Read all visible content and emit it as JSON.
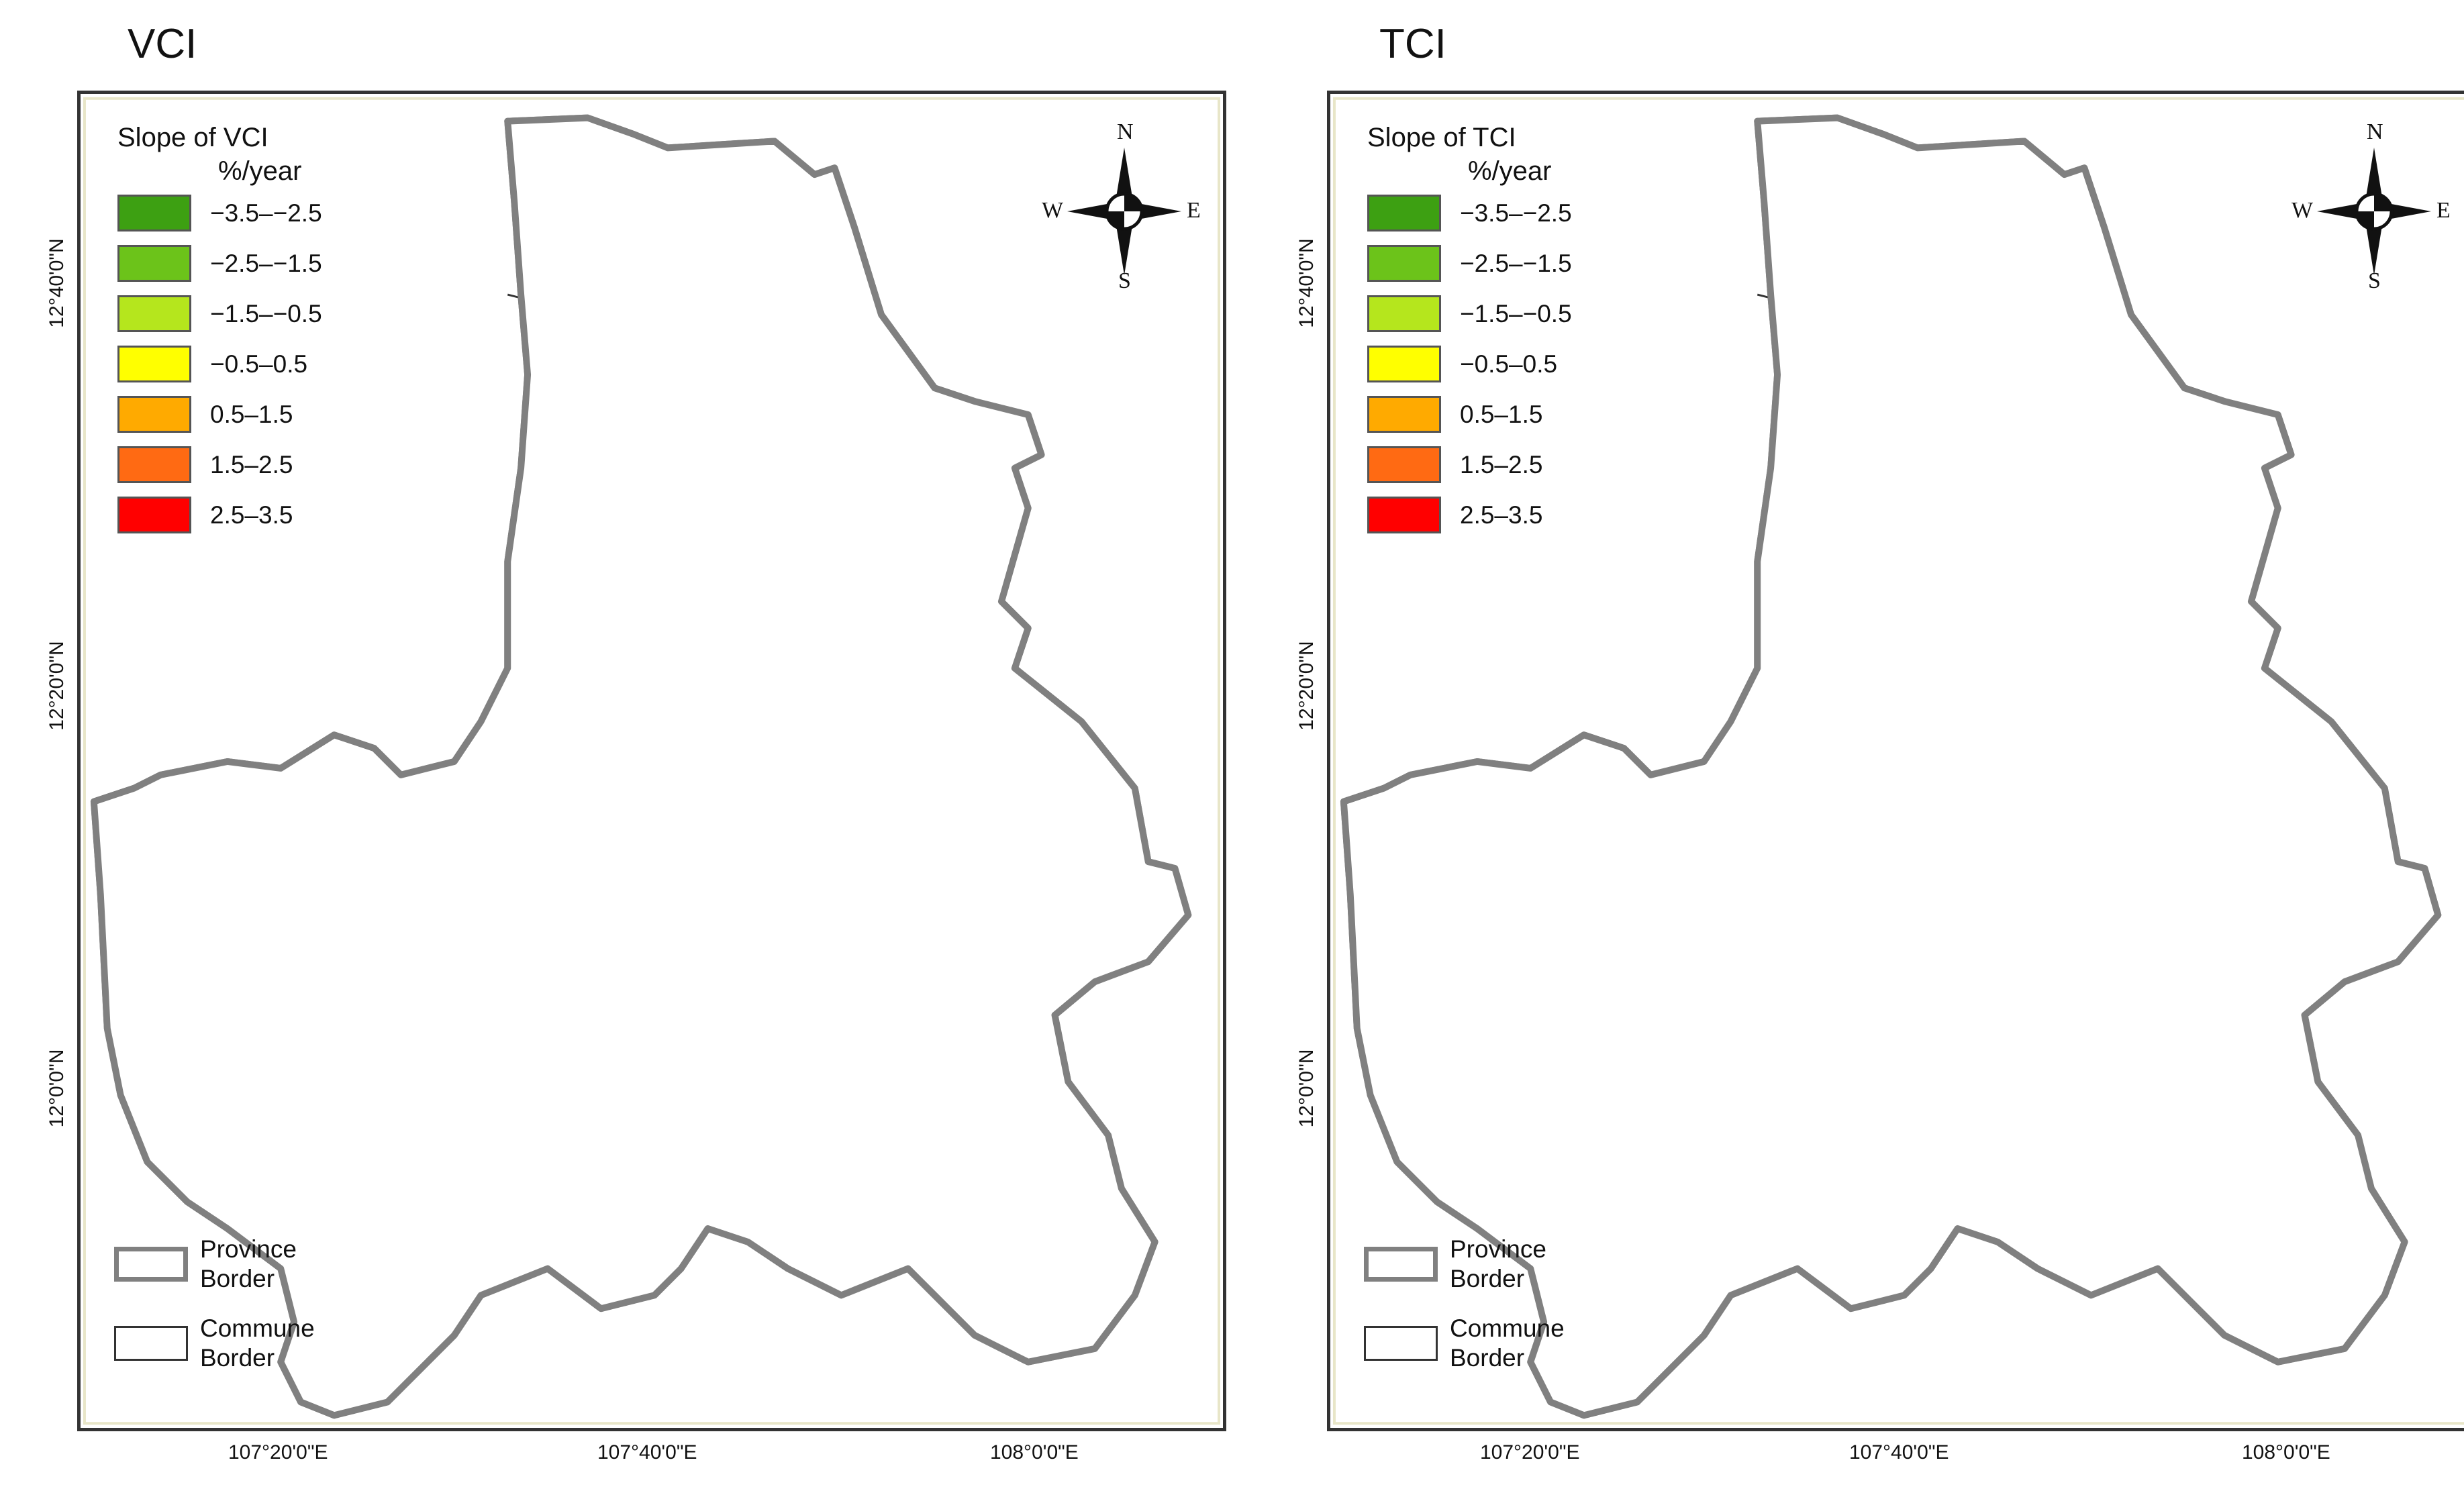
{
  "panels": [
    {
      "title": "VCI",
      "legend_title": "Slope of VCI",
      "legend_unit": "%/year"
    },
    {
      "title": "TCI",
      "legend_title": "Slope of TCI",
      "legend_unit": "%/year"
    }
  ],
  "legend_classes": [
    {
      "label": "−3.5–−2.5",
      "color": "#3da012"
    },
    {
      "label": "−2.5–−1.5",
      "color": "#6cc31a"
    },
    {
      "label": "−1.5–−0.5",
      "color": "#b5e61d"
    },
    {
      "label": "−0.5–0.5",
      "color": "#ffff00"
    },
    {
      "label": "0.5–1.5",
      "color": "#ffaa00"
    },
    {
      "label": "1.5–2.5",
      "color": "#ff6a13"
    },
    {
      "label": "2.5–3.5",
      "color": "#ff0000"
    }
  ],
  "border_legend": {
    "province": "Province\nBorder",
    "commune": "Commune\nBorder"
  },
  "compass": {
    "n": "N",
    "s": "S",
    "e": "E",
    "w": "W"
  },
  "latitude_labels": [
    "12°40'0\"N",
    "12°20'0\"N",
    "12°0'0\"N"
  ],
  "longitude_labels": [
    "107°20'0\"E",
    "107°40'0\"E",
    "108°0'0\"E"
  ],
  "colors": {
    "province_border": "#808080",
    "commune_border": "#333333",
    "frame_inner": "#e8e6c8"
  }
}
